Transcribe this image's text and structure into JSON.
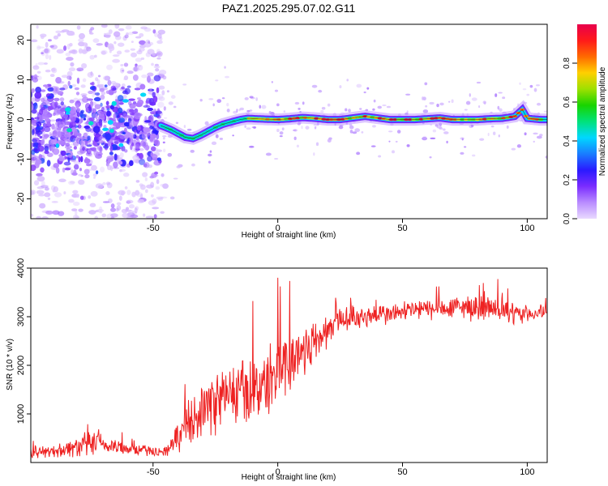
{
  "title": "PAZ1.2025.295.07.02.G11",
  "chart_data": [
    {
      "type": "heatmap",
      "title": "PAZ1.2025.295.07.02.G11",
      "xlabel": "Height of straight line (km)",
      "ylabel": "Frequency (Hz)",
      "xlim": [
        -99,
        108
      ],
      "ylim": [
        -25,
        24
      ],
      "xticks": [
        -50,
        0,
        50,
        100
      ],
      "yticks": [
        20,
        10,
        0,
        -10,
        -20
      ],
      "colorbar": {
        "label": "Normalized spectral amplitude",
        "range": [
          0,
          1
        ],
        "ticks": [
          0.0,
          0.2,
          0.4,
          0.6,
          0.8
        ],
        "tick_labels": [
          "0.0",
          "0.2",
          "0.4",
          "0.6",
          "0.8"
        ],
        "colors": [
          "#e9d9ff",
          "#b98cff",
          "#7a2cff",
          "#2a1aff",
          "#1a7cff",
          "#00d8ff",
          "#00e27a",
          "#18d400",
          "#9ee000",
          "#ffd000",
          "#ff6a00",
          "#ff1a1a",
          "#e8004c"
        ]
      },
      "ridge": {
        "description": "dominant frequency track",
        "x": [
          -47,
          -43,
          -40,
          -37,
          -34,
          -31,
          -28,
          -25,
          -22,
          -18,
          -15,
          -12,
          -9,
          -5,
          0,
          5,
          10,
          15,
          20,
          25,
          30,
          35,
          40,
          45,
          50,
          55,
          60,
          65,
          70,
          75,
          80,
          85,
          90,
          95,
          98,
          100,
          105,
          108
        ],
        "y": [
          -1.5,
          -2.5,
          -3.5,
          -4.5,
          -4.8,
          -4.0,
          -3.0,
          -2.0,
          -1.2,
          -0.5,
          0.0,
          0.3,
          0.2,
          0.1,
          0.0,
          0.2,
          0.5,
          0.3,
          0.0,
          0.0,
          0.4,
          0.8,
          0.4,
          0.0,
          0.0,
          0.0,
          0.2,
          0.4,
          0.0,
          0.0,
          0.0,
          0.2,
          0.3,
          0.8,
          2.5,
          0.3,
          0.0,
          0.0
        ]
      }
    },
    {
      "type": "line",
      "xlabel": "Height of straight line (km)",
      "ylabel": "SNR (10 * v/v)",
      "xlim": [
        -99,
        108
      ],
      "ylim": [
        0,
        4000
      ],
      "xticks": [
        -50,
        0,
        50,
        100
      ],
      "yticks": [
        1000,
        2000,
        3000,
        4000
      ],
      "color": "#ee2222",
      "series": [
        {
          "name": "SNR",
          "x": [
            -99,
            -90,
            -80,
            -75,
            -70,
            -65,
            -60,
            -55,
            -50,
            -47,
            -45,
            -40,
            -35,
            -30,
            -25,
            -20,
            -15,
            -10,
            -5,
            0,
            5,
            10,
            15,
            20,
            25,
            30,
            35,
            40,
            45,
            50,
            55,
            60,
            65,
            70,
            75,
            80,
            85,
            90,
            95,
            100,
            105,
            108
          ],
          "mean": [
            200,
            230,
            330,
            380,
            360,
            320,
            300,
            260,
            230,
            220,
            230,
            500,
            900,
            1100,
            1250,
            1400,
            1450,
            1500,
            1600,
            1900,
            2100,
            2300,
            2500,
            2700,
            2950,
            3000,
            3000,
            3050,
            3050,
            3100,
            3150,
            3150,
            3150,
            3180,
            3200,
            3200,
            3150,
            3100,
            3050,
            3050,
            3100,
            3100
          ],
          "spread": [
            130,
            140,
            260,
            330,
            260,
            200,
            170,
            140,
            120,
            110,
            120,
            350,
            550,
            650,
            750,
            800,
            820,
            800,
            800,
            900,
            850,
            700,
            550,
            400,
            350,
            300,
            280,
            270,
            260,
            250,
            260,
            260,
            260,
            280,
            300,
            320,
            300,
            280,
            260,
            200,
            180,
            160
          ]
        }
      ]
    }
  ]
}
